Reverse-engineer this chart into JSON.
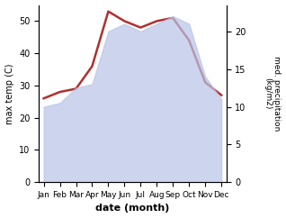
{
  "months": [
    "Jan",
    "Feb",
    "Mar",
    "Apr",
    "May",
    "Jun",
    "Jul",
    "Aug",
    "Sep",
    "Oct",
    "Nov",
    "Dec"
  ],
  "month_positions": [
    0,
    1,
    2,
    3,
    4,
    5,
    6,
    7,
    8,
    9,
    10,
    11
  ],
  "temp": [
    26,
    28,
    29,
    36,
    53,
    50,
    48,
    50,
    51,
    44,
    31,
    27
  ],
  "precip": [
    10,
    10.5,
    12.5,
    13,
    20,
    21,
    20,
    21,
    22,
    21,
    14,
    11
  ],
  "temp_color": "#b03030",
  "precip_fill_color": "#b8c4e8",
  "precip_edge_color": "#8898d0",
  "temp_ylim": [
    0,
    55
  ],
  "precip_ylim": [
    0,
    23.5
  ],
  "temp_yticks": [
    0,
    10,
    20,
    30,
    40,
    50
  ],
  "precip_yticks": [
    0,
    5,
    10,
    15,
    20
  ],
  "xlabel": "date (month)",
  "ylabel_left": "max temp (C)",
  "ylabel_right": "med. precipitation\n(kg/m2)",
  "background_color": "#ffffff"
}
